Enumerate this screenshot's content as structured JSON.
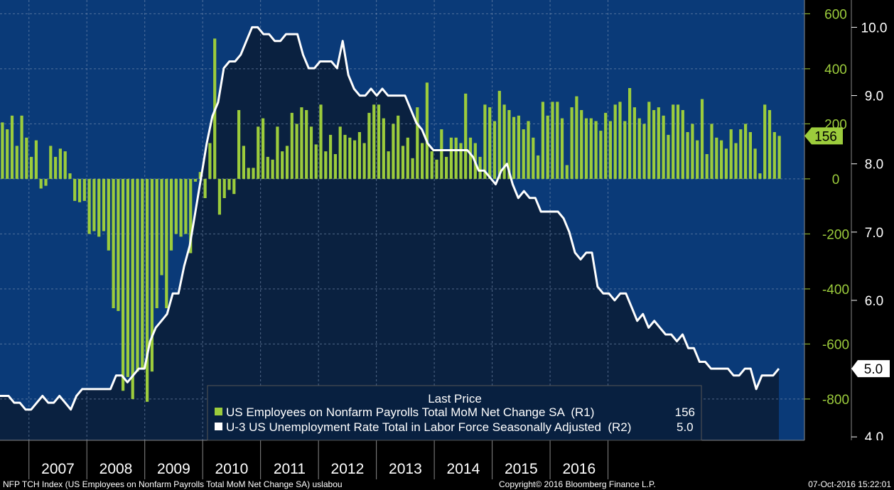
{
  "chart_data": {
    "type": "bar+line",
    "x_start": "2006-07",
    "x_axis_labels": [
      "2007",
      "2008",
      "2009",
      "2010",
      "2011",
      "2012",
      "2013",
      "2014",
      "2015",
      "2016"
    ],
    "series": [
      {
        "name": "US Employees on Nonfarm Payrolls Total MoM Net Change SA",
        "axis": "R1",
        "type": "bar",
        "color": "#9ccc3c",
        "values": [
          205,
          180,
          230,
          120,
          230,
          150,
          80,
          140,
          -35,
          -25,
          120,
          80,
          110,
          100,
          20,
          -80,
          -85,
          -80,
          -200,
          -190,
          -210,
          -190,
          -260,
          -470,
          -480,
          -770,
          -720,
          -800,
          -700,
          -690,
          -810,
          -700,
          -470,
          -350,
          -470,
          -260,
          -200,
          -210,
          -200,
          -270,
          -10,
          25,
          -70,
          130,
          510,
          -130,
          -70,
          -40,
          -55,
          250,
          120,
          40,
          40,
          190,
          220,
          80,
          70,
          190,
          100,
          120,
          240,
          200,
          260,
          250,
          190,
          125,
          270,
          100,
          160,
          90,
          190,
          160,
          150,
          140,
          170,
          130,
          240,
          270,
          270,
          220,
          100,
          200,
          230,
          120,
          150,
          75,
          260,
          130,
          350,
          100,
          70,
          180,
          80,
          150,
          150,
          130,
          310,
          150,
          130,
          80,
          270,
          260,
          210,
          320,
          270,
          250,
          225,
          230,
          180,
          210,
          150,
          85,
          280,
          230,
          280,
          280,
          220,
          50,
          260,
          300,
          250,
          220,
          220,
          210,
          175,
          240,
          210,
          270,
          280,
          210,
          330,
          260,
          220,
          200,
          280,
          250,
          260,
          230,
          160,
          270,
          270,
          250,
          170,
          200,
          140,
          290,
          90,
          200,
          150,
          140,
          110,
          180,
          130,
          180,
          200,
          170,
          110,
          20,
          270,
          250,
          170,
          156
        ],
        "last_price": "156"
      },
      {
        "name": "U-3 US Unemployment Rate Total in Labor Force Seasonally Adjusted",
        "axis": "R2",
        "type": "line",
        "color": "#ffffff",
        "values": [
          4.6,
          4.6,
          4.5,
          4.5,
          4.4,
          4.4,
          4.5,
          4.6,
          4.5,
          4.5,
          4.6,
          4.5,
          4.4,
          4.6,
          4.7,
          4.7,
          4.7,
          4.7,
          4.7,
          4.7,
          4.9,
          4.9,
          4.8,
          4.9,
          5.0,
          5.0,
          5.4,
          5.6,
          5.7,
          5.8,
          6.1,
          6.1,
          6.5,
          6.8,
          7.3,
          7.8,
          8.3,
          8.7,
          8.9,
          9.4,
          9.5,
          9.5,
          9.6,
          9.8,
          10.0,
          10.0,
          9.9,
          9.9,
          9.8,
          9.8,
          9.9,
          9.9,
          9.9,
          9.6,
          9.4,
          9.4,
          9.5,
          9.5,
          9.5,
          9.4,
          9.8,
          9.3,
          9.1,
          9.0,
          9.0,
          9.1,
          9.0,
          9.1,
          9.0,
          9.0,
          9.0,
          9.0,
          8.8,
          8.6,
          8.5,
          8.3,
          8.2,
          8.2,
          8.2,
          8.2,
          8.2,
          8.2,
          8.2,
          8.1,
          7.9,
          7.9,
          7.8,
          7.7,
          7.9,
          8.0,
          7.7,
          7.5,
          7.6,
          7.5,
          7.5,
          7.3,
          7.3,
          7.3,
          7.3,
          7.2,
          7.0,
          6.7,
          6.6,
          6.7,
          6.7,
          6.2,
          6.1,
          6.1,
          6.0,
          6.1,
          6.1,
          5.9,
          5.7,
          5.8,
          5.6,
          5.7,
          5.6,
          5.5,
          5.5,
          5.4,
          5.5,
          5.3,
          5.3,
          5.1,
          5.1,
          5.0,
          5.0,
          5.0,
          5.0,
          4.9,
          4.9,
          5.0,
          5.0,
          4.7,
          4.9,
          4.9,
          4.9,
          5.0
        ],
        "last_price": "5.0"
      }
    ],
    "r1_axis": {
      "min": -950,
      "max": 650,
      "ticks": [
        600,
        400,
        200,
        0,
        -200,
        -400,
        -600,
        -800
      ],
      "tick_labels": [
        "600",
        "400",
        "200",
        "0",
        "-200",
        "-400",
        "-600",
        "-800"
      ]
    },
    "r2_axis": {
      "min": 3.95,
      "max": 10.4,
      "ticks": [
        10.0,
        9.0,
        8.0,
        7.0,
        6.0,
        5.0,
        4.0
      ],
      "tick_labels": [
        "10.0",
        "9.0",
        "8.0",
        "7.0",
        "6.0",
        "5.0",
        "4.0"
      ]
    },
    "grid": "dashed",
    "legend": {
      "placement": "bottom-center",
      "header": "Last Price",
      "entries": [
        {
          "label": "US Employees on Nonfarm Payrolls Total MoM Net Change SA  (R1)",
          "value": "156",
          "color": "#9ccc3c"
        },
        {
          "label": "U-3 US Unemployment Rate Total in Labor Force Seasonally Adjusted  (R2)",
          "value": "5.0",
          "color": "#ffffff"
        }
      ]
    }
  },
  "footer": {
    "left": "NFP TCH Index (US Employees on Nonfarm Payrolls Total MoM Net Change SA) uslabou",
    "center": "Copyright© 2016 Bloomberg Finance L.P.",
    "right": "07-Oct-2016 15:22:01"
  },
  "colors": {
    "plot_bg": "#0a3a78",
    "area_fill": "#0a2140",
    "axis_bg": "#000000",
    "bar": "#9ccc3c",
    "line": "#ffffff"
  }
}
